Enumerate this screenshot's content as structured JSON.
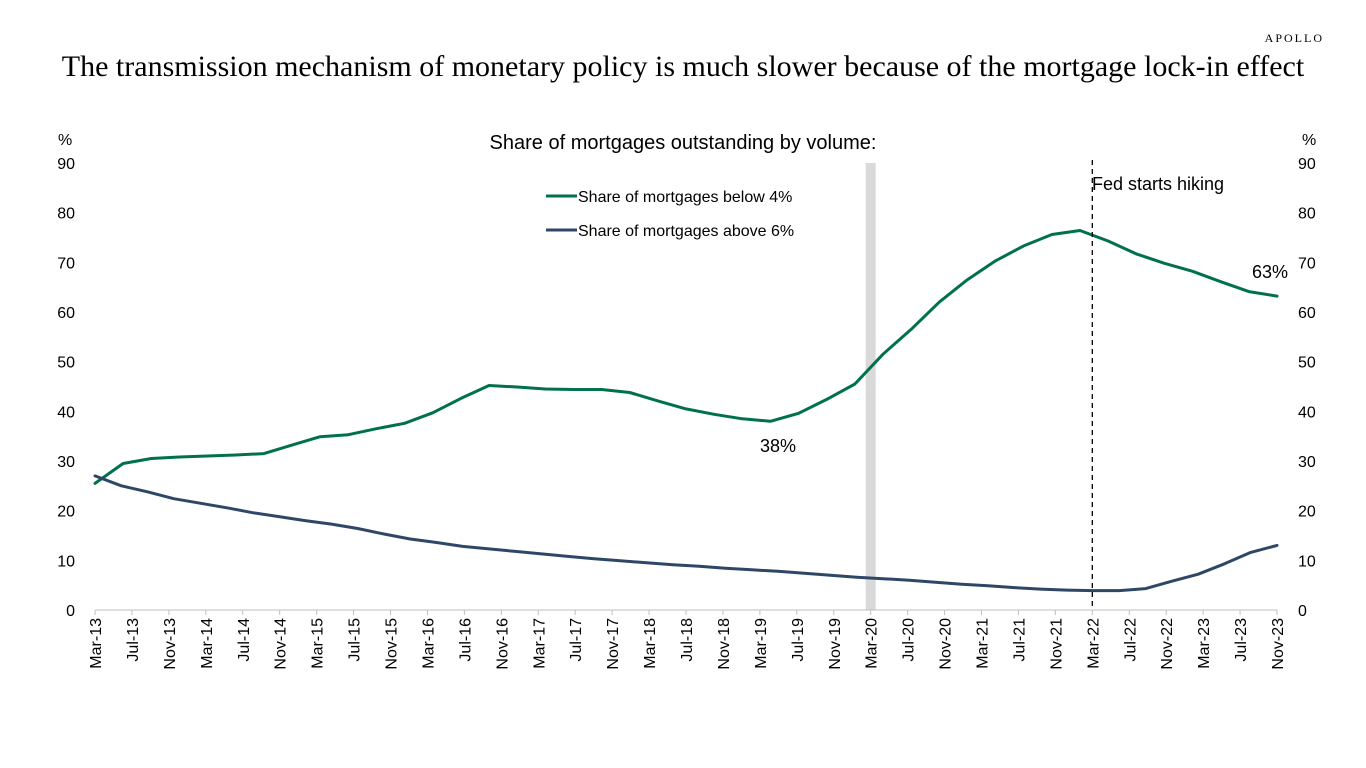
{
  "brand": "APOLLO",
  "headline": "The transmission mechanism of monetary policy is much slower because of the mortgage lock-in effect",
  "chart_data": {
    "type": "line",
    "subtitle": "Share of mortgages outstanding by volume:",
    "y_unit_left": "%",
    "y_unit_right": "%",
    "ylim": [
      0,
      90
    ],
    "yticks": [
      0,
      10,
      20,
      30,
      40,
      50,
      60,
      70,
      80,
      90
    ],
    "xlabels": [
      "Mar-13",
      "Jul-13",
      "Nov-13",
      "Mar-14",
      "Jul-14",
      "Nov-14",
      "Mar-15",
      "Jul-15",
      "Nov-15",
      "Mar-16",
      "Jul-16",
      "Nov-16",
      "Mar-17",
      "Jul-17",
      "Nov-17",
      "Mar-18",
      "Jul-18",
      "Nov-18",
      "Mar-19",
      "Jul-19",
      "Nov-19",
      "Mar-20",
      "Jul-20",
      "Nov-20",
      "Mar-21",
      "Jul-21",
      "Nov-21",
      "Mar-22",
      "Jul-22",
      "Nov-22",
      "Mar-23",
      "Jul-23",
      "Nov-23"
    ],
    "series": [
      {
        "name": "Share of mortgages below 4%",
        "color": "#00704f",
        "values": [
          25.5,
          29.5,
          30.5,
          30.8,
          31.0,
          31.2,
          31.5,
          33.2,
          34.9,
          35.3,
          36.5,
          37.6,
          39.7,
          42.6,
          45.2,
          44.9,
          44.5,
          44.4,
          44.4,
          43.8,
          42.1,
          40.5,
          39.4,
          38.5,
          38.0,
          39.6,
          42.4,
          45.5,
          51.5,
          56.5,
          62.0,
          66.5,
          70.3,
          73.3,
          75.6,
          76.4,
          74.3,
          71.7,
          69.8,
          68.2,
          66.1,
          64.1,
          63.2
        ]
      },
      {
        "name": "Share of mortgages above 6%",
        "color": "#2f4766",
        "values": [
          27.0,
          25.0,
          23.8,
          22.4,
          21.5,
          20.6,
          19.6,
          18.8,
          18.0,
          17.3,
          16.4,
          15.3,
          14.3,
          13.6,
          12.8,
          12.3,
          11.8,
          11.3,
          10.8,
          10.3,
          9.9,
          9.5,
          9.1,
          8.8,
          8.4,
          8.1,
          7.8,
          7.4,
          7.0,
          6.6,
          6.3,
          6.0,
          5.6,
          5.2,
          4.9,
          4.5,
          4.2,
          4.0,
          3.9,
          3.9,
          4.3,
          5.8,
          7.2,
          9.3,
          11.6,
          13.0
        ]
      }
    ],
    "annotations": {
      "low_label": "38%",
      "end_label": "63%",
      "fed_label": "Fed starts hiking",
      "covid_band_at": "Mar-20",
      "fed_line_at": "Mar-22"
    },
    "legend_position": "top-center",
    "grid": false
  }
}
